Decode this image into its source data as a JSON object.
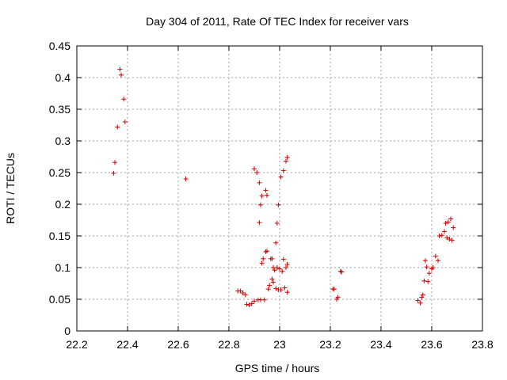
{
  "chart_data": {
    "type": "scatter",
    "title": "Day 304 of 2011, Rate Of TEC Index for receiver vars",
    "xlabel": "GPS time / hours",
    "ylabel": "ROTI / TECUs",
    "xlim": [
      22.2,
      23.8
    ],
    "ylim": [
      0,
      0.45
    ],
    "xticks": [
      "22.2",
      "22.4",
      "22.6",
      "22.8",
      "23",
      "23.2",
      "23.4",
      "23.6",
      "23.8"
    ],
    "yticks": [
      "0",
      "0.05",
      "0.1",
      "0.15",
      "0.2",
      "0.25",
      "0.3",
      "0.35",
      "0.4",
      "0.45"
    ],
    "grid": true,
    "marker": "+",
    "color": "#cc0000",
    "series": [
      {
        "points": [
          [
            22.345,
            0.249
          ],
          [
            22.35,
            0.266
          ],
          [
            22.36,
            0.322
          ],
          [
            22.37,
            0.413
          ],
          [
            22.375,
            0.404
          ],
          [
            22.385,
            0.366
          ],
          [
            22.39,
            0.33
          ],
          [
            22.63,
            0.24
          ],
          [
            22.835,
            0.063
          ],
          [
            22.845,
            0.063
          ],
          [
            22.855,
            0.06
          ],
          [
            22.865,
            0.057
          ],
          [
            22.87,
            0.042
          ],
          [
            22.88,
            0.041
          ],
          [
            22.89,
            0.043
          ],
          [
            22.9,
            0.047
          ],
          [
            22.9,
            0.256
          ],
          [
            22.91,
            0.25
          ],
          [
            22.915,
            0.049
          ],
          [
            22.92,
            0.234
          ],
          [
            22.92,
            0.171
          ],
          [
            22.925,
            0.199
          ],
          [
            22.925,
            0.049
          ],
          [
            22.93,
            0.107
          ],
          [
            22.93,
            0.213
          ],
          [
            22.935,
            0.114
          ],
          [
            22.94,
            0.049
          ],
          [
            22.945,
            0.222
          ],
          [
            22.945,
            0.125
          ],
          [
            22.95,
            0.214
          ],
          [
            22.95,
            0.126
          ],
          [
            22.955,
            0.066
          ],
          [
            22.96,
            0.072
          ],
          [
            22.965,
            0.114
          ],
          [
            22.97,
            0.114
          ],
          [
            22.97,
            0.082
          ],
          [
            22.975,
            0.077
          ],
          [
            22.975,
            0.1
          ],
          [
            22.98,
            0.096
          ],
          [
            22.985,
            0.139
          ],
          [
            22.985,
            0.067
          ],
          [
            22.99,
            0.17
          ],
          [
            22.99,
            0.1
          ],
          [
            22.995,
            0.199
          ],
          [
            22.995,
            0.065
          ],
          [
            23.0,
            0.098
          ],
          [
            23.005,
            0.243
          ],
          [
            23.005,
            0.065
          ],
          [
            23.01,
            0.094
          ],
          [
            23.015,
            0.253
          ],
          [
            23.015,
            0.113
          ],
          [
            23.02,
            0.068
          ],
          [
            23.025,
            0.268
          ],
          [
            23.025,
            0.1
          ],
          [
            23.03,
            0.274
          ],
          [
            23.03,
            0.105
          ],
          [
            23.03,
            0.061
          ],
          [
            23.21,
            0.066
          ],
          [
            23.215,
            0.066
          ],
          [
            23.225,
            0.05
          ],
          [
            23.23,
            0.053
          ],
          [
            23.24,
            0.094
          ],
          [
            23.245,
            0.093
          ],
          [
            23.545,
            0.048
          ],
          [
            23.555,
            0.044
          ],
          [
            23.56,
            0.053
          ],
          [
            23.565,
            0.057
          ],
          [
            23.57,
            0.079
          ],
          [
            23.575,
            0.111
          ],
          [
            23.58,
            0.101
          ],
          [
            23.585,
            0.078
          ],
          [
            23.59,
            0.091
          ],
          [
            23.6,
            0.098
          ],
          [
            23.605,
            0.1
          ],
          [
            23.615,
            0.118
          ],
          [
            23.625,
            0.111
          ],
          [
            23.63,
            0.15
          ],
          [
            23.64,
            0.151
          ],
          [
            23.65,
            0.157
          ],
          [
            23.655,
            0.17
          ],
          [
            23.66,
            0.147
          ],
          [
            23.665,
            0.172
          ],
          [
            23.67,
            0.145
          ],
          [
            23.675,
            0.177
          ],
          [
            23.68,
            0.143
          ],
          [
            23.685,
            0.163
          ]
        ]
      }
    ]
  }
}
